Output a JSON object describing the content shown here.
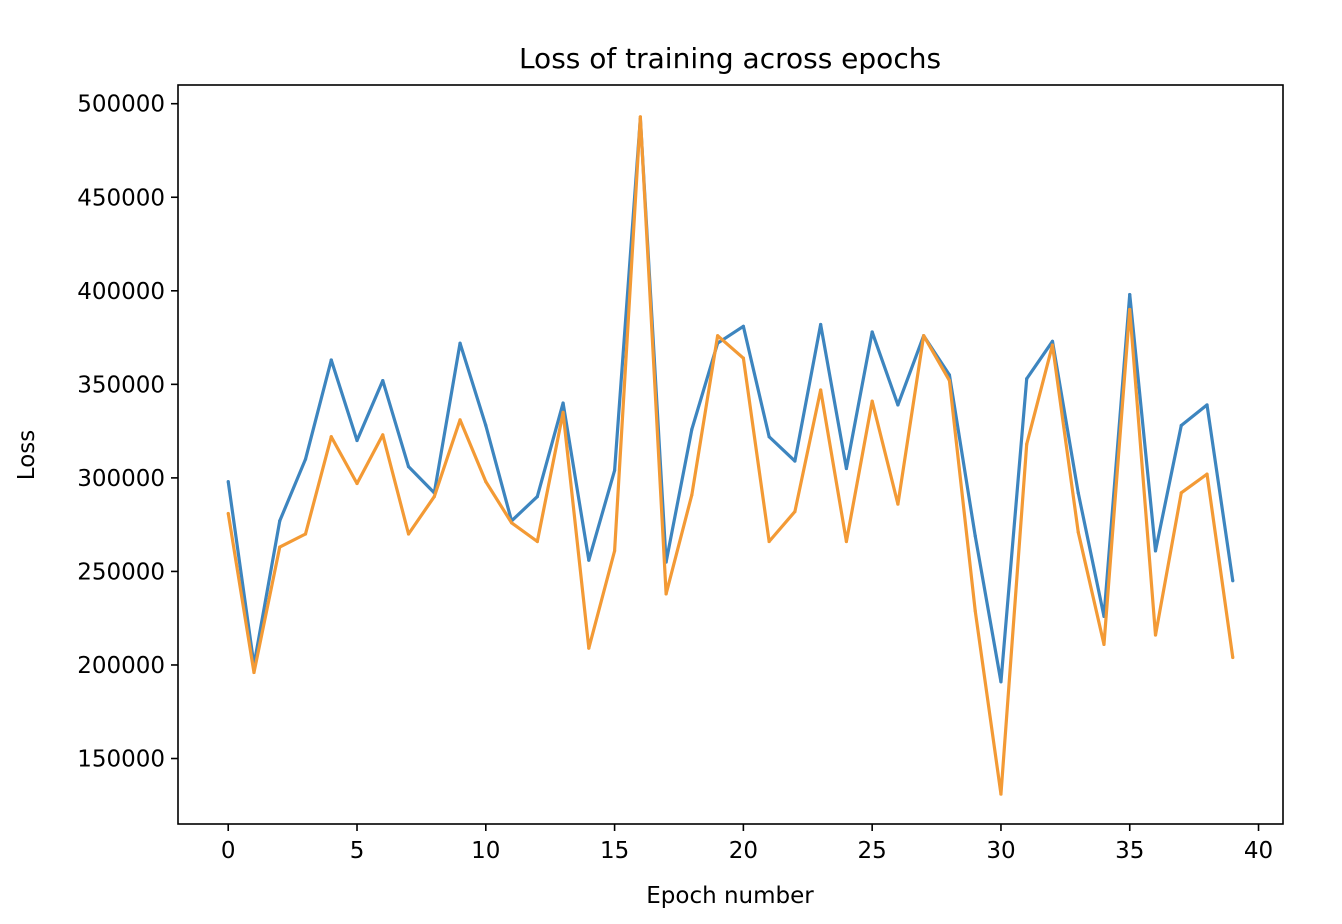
{
  "chart_data": {
    "type": "line",
    "title": "Loss of training across epochs",
    "xlabel": "Epoch number",
    "ylabel": "Loss",
    "xlim": [
      -1.95,
      40.95
    ],
    "ylim": [
      115000,
      510000
    ],
    "xticks": [
      0,
      5,
      10,
      15,
      20,
      25,
      30,
      35,
      40
    ],
    "yticks": [
      150000,
      200000,
      250000,
      300000,
      350000,
      400000,
      450000,
      500000
    ],
    "grid": false,
    "legend": "none",
    "x": [
      0,
      1,
      2,
      3,
      4,
      5,
      6,
      7,
      8,
      9,
      10,
      11,
      12,
      13,
      14,
      15,
      16,
      17,
      18,
      19,
      20,
      21,
      22,
      23,
      24,
      25,
      26,
      27,
      28,
      29,
      30,
      31,
      32,
      33,
      34,
      35,
      36,
      37,
      38,
      39
    ],
    "series": [
      {
        "color": "#3d85bf",
        "values": [
          298000,
          200000,
          277000,
          310000,
          363000,
          320000,
          352000,
          306000,
          292000,
          372000,
          328000,
          277000,
          290000,
          340000,
          256000,
          304000,
          492000,
          255000,
          326000,
          372000,
          381000,
          322000,
          309000,
          382000,
          305000,
          378000,
          339000,
          376000,
          355000,
          269000,
          191000,
          353000,
          373000,
          292000,
          226000,
          398000,
          261000,
          328000,
          339000,
          245000
        ]
      },
      {
        "color": "#f39a35",
        "values": [
          281000,
          196000,
          263000,
          270000,
          322000,
          297000,
          323000,
          270000,
          290000,
          331000,
          298000,
          276000,
          266000,
          335000,
          209000,
          261000,
          493000,
          238000,
          291000,
          376000,
          364000,
          266000,
          282000,
          347000,
          266000,
          341000,
          286000,
          376000,
          352000,
          229000,
          131000,
          318000,
          371000,
          271000,
          211000,
          390000,
          216000,
          292000,
          302000,
          204000
        ]
      }
    ]
  }
}
